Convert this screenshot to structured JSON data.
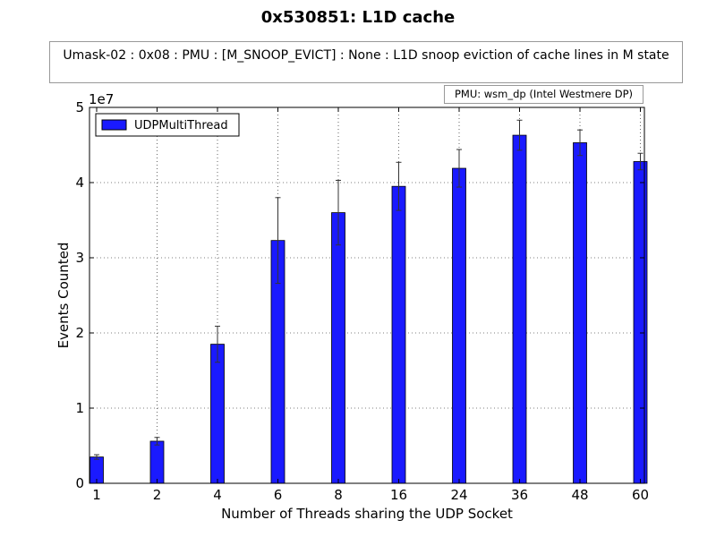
{
  "chart_data": {
    "type": "bar",
    "title": "0x530851: L1D cache",
    "subtitle": "Umask-02 : 0x08 : PMU : [M_SNOOP_EVICT] : None : L1D snoop eviction of cache lines in M state",
    "annotation": "PMU: wsm_dp (Intel Westmere DP)",
    "xlabel": "Number of Threads sharing the UDP Socket",
    "ylabel": "Events Counted",
    "y_scale_label": "1e7",
    "ylim": [
      0,
      50000000
    ],
    "yticks": [
      0,
      10000000,
      20000000,
      30000000,
      40000000,
      50000000
    ],
    "ytick_labels": [
      "0",
      "1",
      "2",
      "3",
      "4",
      "5"
    ],
    "grid": true,
    "legend_position": "top-left",
    "bar_color": "#1a1aff",
    "categories": [
      "1",
      "2",
      "4",
      "6",
      "8",
      "16",
      "24",
      "36",
      "48",
      "60"
    ],
    "series": [
      {
        "name": "UDPMultiThread",
        "values": [
          3500000,
          5600000,
          18500000,
          32300000,
          36000000,
          39500000,
          41900000,
          46300000,
          45300000,
          42800000
        ],
        "error": [
          300000,
          500000,
          2400000,
          5700000,
          4300000,
          3200000,
          2500000,
          2000000,
          1700000,
          1100000
        ]
      }
    ]
  }
}
